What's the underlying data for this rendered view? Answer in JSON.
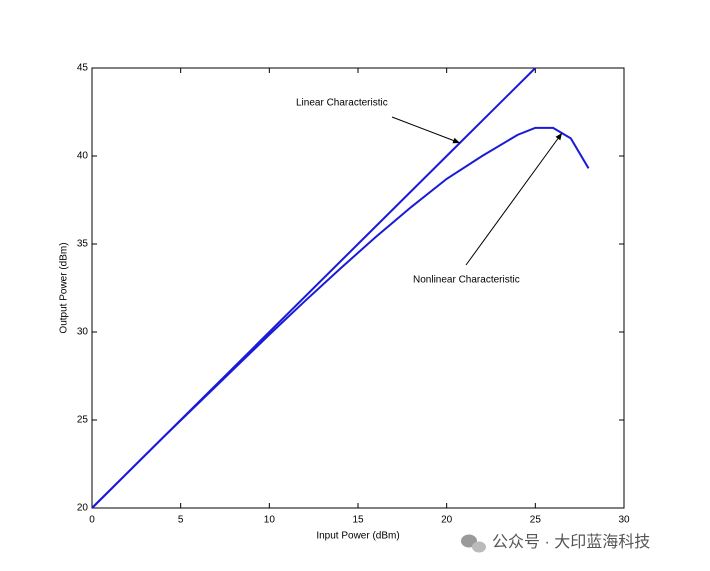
{
  "chart_data": {
    "type": "line",
    "xlabel": "Input Power (dBm)",
    "ylabel": "Output Power (dBm)",
    "series": [
      {
        "name": "Linear Characteristic",
        "color": "#1a1ad8",
        "x": [
          0,
          5,
          10,
          15,
          20,
          25
        ],
        "values": [
          20,
          25,
          30,
          35,
          40,
          45
        ]
      },
      {
        "name": "Nonlinear Characteristic",
        "color": "#1a1ad8",
        "x": [
          0,
          2,
          4,
          6,
          8,
          10,
          12,
          14,
          16,
          18,
          20,
          22,
          24,
          25,
          26,
          27,
          28
        ],
        "values": [
          20,
          22,
          24,
          25.95,
          27.9,
          29.85,
          31.75,
          33.6,
          35.4,
          37.1,
          38.7,
          40.0,
          41.2,
          41.6,
          41.6,
          41.0,
          39.3
        ]
      }
    ],
    "xlim": [
      0,
      30
    ],
    "xticks": [
      0,
      5,
      10,
      15,
      20,
      25,
      30
    ],
    "ylim": [
      20,
      45
    ],
    "yticks": [
      20,
      25,
      30,
      35,
      40,
      45
    ]
  },
  "watermark": "公众号 · 大印蓝海科技"
}
